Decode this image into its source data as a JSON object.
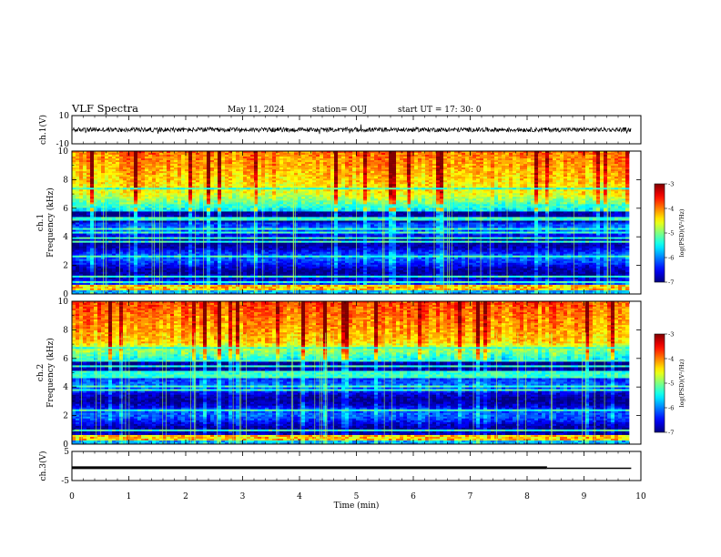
{
  "header": {
    "title": "VLF Spectra",
    "date": "May 11, 2024",
    "station": "station= OUJ",
    "start": "start  UT  =   17: 30: 0"
  },
  "chart_data": [
    {
      "type": "line",
      "panel": "waveform-ch1",
      "ylabel": "ch.1(V)",
      "ylim": [
        -10,
        10
      ],
      "yticks": [
        "10",
        "-10"
      ],
      "xlim": [
        0,
        10
      ],
      "data_end_min": 9.83,
      "baseline": 0
    },
    {
      "type": "heatmap",
      "panel": "spectrogram-ch1",
      "ylabel": "ch.1\nFrequency  (kHz)",
      "ylim": [
        0,
        10
      ],
      "yticks": [
        "0",
        "2",
        "4",
        "6",
        "8",
        "10"
      ],
      "xlim": [
        0,
        10
      ],
      "data_end_min": 9.83,
      "colorbar": {
        "label": "log(PSD)(V²/Hz)",
        "range": [
          -7,
          -3
        ],
        "ticks": [
          "-3",
          "-4",
          "-5",
          "-6",
          "-7"
        ]
      }
    },
    {
      "type": "heatmap",
      "panel": "spectrogram-ch2",
      "ylabel": "ch.2\nFrequency  (kHz)",
      "ylim": [
        0,
        10
      ],
      "yticks": [
        "0",
        "2",
        "4",
        "6",
        "8",
        "10"
      ],
      "xlim": [
        0,
        10
      ],
      "data_end_min": 9.83,
      "colorbar": {
        "label": "log(PSD)(V²/Hz)",
        "range": [
          -7,
          -3
        ],
        "ticks": [
          "-3",
          "-4",
          "-5",
          "-6",
          "-7"
        ]
      }
    },
    {
      "type": "line",
      "panel": "waveform-ch3",
      "ylabel": "ch.3(V)",
      "ylim": [
        -5,
        5
      ],
      "yticks": [
        "5",
        "-5"
      ],
      "xlim": [
        0,
        10
      ],
      "x": [
        0,
        8.35,
        8.35,
        9.83
      ],
      "y": [
        -0.6,
        -0.6,
        -0.8,
        -0.8
      ],
      "xlabel": "Time  (min)",
      "xticks": [
        "0",
        "1",
        "2",
        "3",
        "4",
        "5",
        "6",
        "7",
        "8",
        "9",
        "10"
      ]
    }
  ]
}
